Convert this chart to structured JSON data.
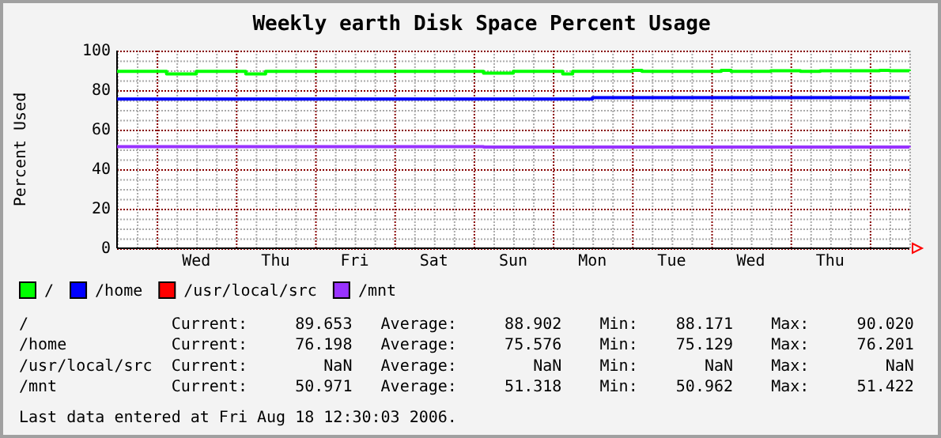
{
  "chart_data": {
    "type": "step",
    "title": "Weekly earth Disk Space Percent Usage",
    "ylabel": "Percent Used",
    "categories": [
      null,
      null,
      null,
      null,
      null,
      null,
      null,
      null,
      "Wed",
      null,
      null,
      null,
      null,
      null,
      null,
      null,
      "Thu",
      null,
      null,
      null,
      null,
      null,
      null,
      null,
      "Fri",
      null,
      null,
      null,
      null,
      null,
      null,
      null,
      "Sat",
      null,
      null,
      null,
      null,
      null,
      null,
      null,
      "Sun",
      null,
      null,
      null,
      null,
      null,
      null,
      null,
      "Mon",
      null,
      null,
      null,
      null,
      null,
      null,
      null,
      "Tue",
      null,
      null,
      null,
      null,
      null,
      null,
      null,
      "Wed",
      null,
      null,
      null,
      null,
      null,
      null,
      null,
      "Thu",
      null,
      null,
      null,
      null,
      null,
      null,
      null,
      null
    ],
    "ylim": [
      0,
      100
    ],
    "yticks": [
      0,
      {
        "value": 5,
        "label": null
      },
      {
        "value": 10,
        "label": null
      },
      {
        "value": 15,
        "label": null
      },
      20,
      {
        "value": 25,
        "label": null
      },
      {
        "value": 30,
        "label": null
      },
      {
        "value": 35,
        "label": null
      },
      40,
      {
        "value": 45,
        "label": null
      },
      {
        "value": 50,
        "label": null
      },
      {
        "value": 55,
        "label": null
      },
      60,
      {
        "value": 65,
        "label": null
      },
      {
        "value": 70,
        "label": null
      },
      {
        "value": 75,
        "label": null
      },
      80,
      {
        "value": 85,
        "label": null
      },
      {
        "value": 90,
        "label": null
      },
      {
        "value": 95,
        "label": null
      },
      100
    ],
    "grid": true,
    "legend": "bottom",
    "series": [
      {
        "name": "/",
        "color": "#00ff00",
        "values": [
          89.5,
          89.5,
          89.5,
          89.5,
          89.5,
          88.2,
          88.2,
          88.2,
          89.5,
          89.5,
          89.5,
          89.5,
          89.5,
          88.2,
          88.2,
          89.5,
          89.5,
          89.5,
          89.5,
          89.5,
          89.5,
          89.5,
          89.5,
          89.5,
          89.5,
          89.5,
          89.5,
          89.5,
          89.5,
          89.5,
          89.5,
          89.5,
          89.5,
          89.5,
          89.5,
          89.5,
          89.5,
          88.6,
          88.6,
          88.6,
          89.5,
          89.5,
          89.5,
          89.5,
          89.5,
          88.2,
          89.5,
          89.5,
          89.5,
          89.5,
          89.5,
          89.5,
          90.0,
          89.5,
          89.5,
          89.5,
          89.5,
          89.5,
          89.5,
          89.5,
          89.5,
          90.0,
          89.5,
          89.5,
          89.5,
          89.5,
          89.8,
          89.8,
          89.8,
          89.5,
          89.5,
          89.8,
          89.8,
          89.8,
          89.8,
          89.8,
          89.8,
          90.0,
          89.8,
          89.8,
          89.7
        ]
      },
      {
        "name": "/home",
        "color": "#0000ff",
        "values": [
          75.5,
          75.5,
          75.5,
          75.5,
          75.5,
          75.5,
          75.5,
          75.5,
          75.5,
          75.5,
          75.5,
          75.5,
          75.5,
          75.5,
          75.5,
          75.5,
          75.5,
          75.5,
          75.5,
          75.5,
          75.5,
          75.5,
          75.5,
          75.5,
          75.5,
          75.5,
          75.5,
          75.5,
          75.5,
          75.5,
          75.5,
          75.5,
          75.5,
          75.5,
          75.5,
          75.5,
          75.5,
          75.5,
          75.5,
          75.5,
          75.5,
          75.5,
          75.5,
          75.5,
          75.5,
          75.5,
          75.5,
          75.5,
          76.2,
          76.2,
          76.2,
          76.2,
          76.2,
          76.2,
          76.2,
          76.2,
          76.2,
          76.2,
          76.2,
          76.2,
          76.2,
          76.2,
          76.2,
          76.2,
          76.2,
          76.2,
          76.2,
          76.2,
          76.2,
          76.2,
          76.2,
          76.2,
          76.2,
          76.2,
          76.2,
          76.2,
          76.2,
          76.2,
          76.2,
          76.2,
          76.2
        ]
      },
      {
        "name": "/usr/local/src",
        "color": "#ff0000",
        "values": [
          null,
          null,
          null,
          null,
          null,
          null,
          null,
          null,
          null,
          null,
          null,
          null,
          null,
          null,
          null,
          null,
          null,
          null,
          null,
          null,
          null,
          null,
          null,
          null,
          null,
          null,
          null,
          null,
          null,
          null,
          null,
          null,
          null,
          null,
          null,
          null,
          null,
          null,
          null,
          null,
          null,
          null,
          null,
          null,
          null,
          null,
          null,
          null,
          null,
          null,
          null,
          null,
          null,
          null,
          null,
          null,
          null,
          null,
          null,
          null,
          null,
          null,
          null,
          null,
          null,
          null,
          null,
          null,
          null,
          null,
          null,
          null,
          null,
          null,
          null,
          null,
          null,
          null,
          null,
          null,
          null
        ]
      },
      {
        "name": "/mnt",
        "color": "#9933ff",
        "values": [
          51.4,
          51.4,
          51.4,
          51.4,
          51.4,
          51.4,
          51.4,
          51.4,
          51.4,
          51.4,
          51.4,
          51.4,
          51.4,
          51.4,
          51.4,
          51.4,
          51.4,
          51.4,
          51.4,
          51.4,
          51.4,
          51.4,
          51.4,
          51.4,
          51.4,
          51.4,
          51.4,
          51.4,
          51.4,
          51.4,
          51.4,
          51.4,
          51.4,
          51.4,
          51.4,
          51.4,
          51.4,
          51.2,
          51.2,
          51.2,
          51.2,
          51.2,
          51.2,
          51.2,
          51.2,
          51.2,
          51.2,
          51.2,
          51.2,
          51.2,
          51.2,
          51.2,
          51.2,
          51.2,
          51.2,
          51.2,
          51.2,
          51.2,
          51.2,
          51.2,
          51.2,
          51.2,
          51.2,
          51.2,
          51.2,
          51.2,
          51.2,
          51.2,
          51.2,
          51.2,
          51.2,
          51.2,
          51.2,
          51.2,
          51.2,
          51.2,
          51.2,
          51.2,
          51.2,
          51.2,
          51.0
        ]
      }
    ],
    "annotations": [
      "/               Current:     89.653   Average:     88.902    Min:    88.171    Max:     90.020",
      "/home           Current:     76.198   Average:     75.576    Min:    75.129    Max:     76.201",
      "/usr/local/src  Current:        NaN   Average:        NaN    Min:       NaN    Max:        NaN",
      "/mnt            Current:     50.971   Average:     51.318    Min:    50.962    Max:     51.422",
      "Last data entered at Fri Aug 18 12:30:03 2006."
    ]
  }
}
